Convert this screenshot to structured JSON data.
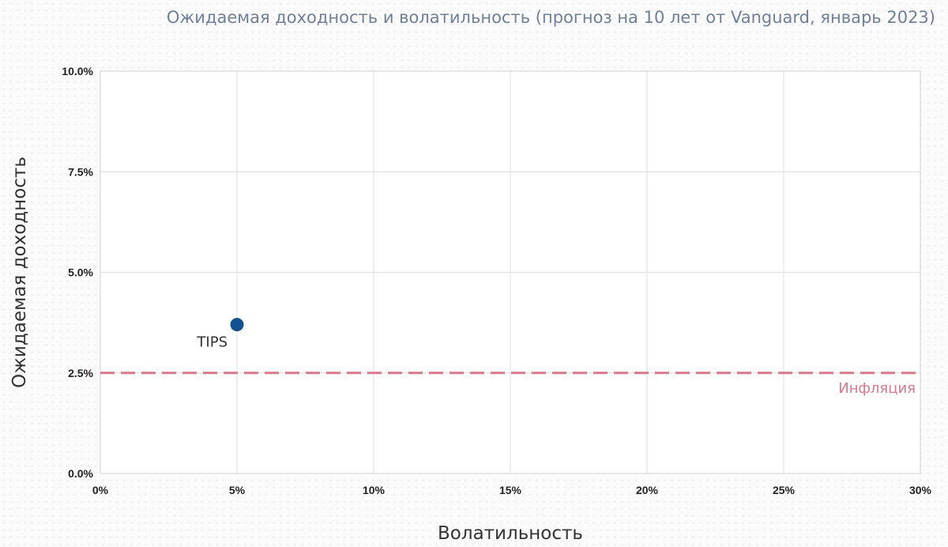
{
  "chart_data": {
    "type": "scatter",
    "title": "Ожидаемая доходность и волатильность (прогноз на 10 лет от Vanguard, январь 2023)",
    "xlabel": "Волатильность",
    "ylabel": "Ожидаемая доходность",
    "xlim": [
      0,
      30
    ],
    "ylim": [
      0,
      10
    ],
    "x_ticks": [
      0,
      5,
      10,
      15,
      20,
      25,
      30
    ],
    "x_tick_labels": [
      "0%",
      "5%",
      "10%",
      "15%",
      "20%",
      "25%",
      "30%"
    ],
    "y_ticks": [
      0,
      2.5,
      5,
      7.5,
      10
    ],
    "y_tick_labels": [
      "0.0%",
      "2.5%",
      "5.0%",
      "7.5%",
      "10.0%"
    ],
    "grid": true,
    "points": [
      {
        "label": "TIPS",
        "x": 5,
        "y": 3.7,
        "color": "#15508f"
      }
    ],
    "reference_lines": [
      {
        "label": "Инфляция",
        "y": 2.5,
        "color": "#d9788b",
        "style": "dashed"
      }
    ]
  }
}
